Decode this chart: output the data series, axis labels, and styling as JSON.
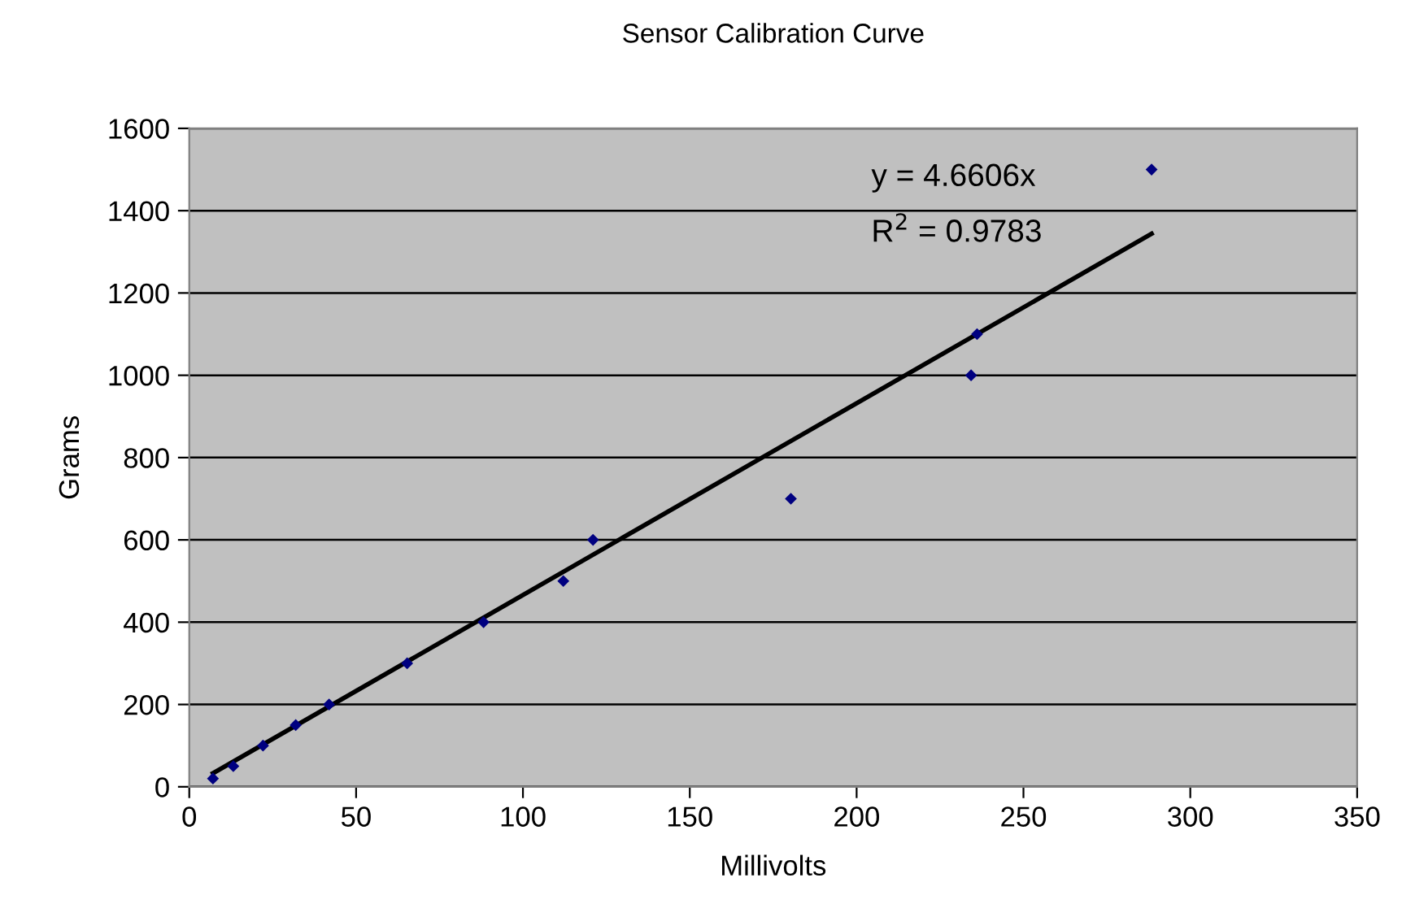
{
  "chart_data": {
    "type": "scatter",
    "title": "Sensor Calibration Curve",
    "xlabel": "Millivolts",
    "ylabel": "Grams",
    "series": [
      {
        "color": "#000080",
        "marker": "diamond",
        "x": [
          7.1,
          13.2,
          22.1,
          31.9,
          41.9,
          65.3,
          88.2,
          112.1,
          121,
          180.3,
          234.3,
          236.1,
          288.4
        ],
        "values": [
          20,
          50,
          100,
          150,
          200,
          300,
          400,
          500,
          600,
          700,
          1000,
          1100,
          1500
        ]
      },
      {
        "type": "line",
        "color": "#000000",
        "marker": "none",
        "line_style": "solid",
        "x": [
          7.1,
          288.4
        ],
        "values": [
          33,
          1344
        ]
      }
    ],
    "annotations": [
      "y = 4.6606x",
      "R$^{2}$ = 0.9783"
    ],
    "xlim": [
      0,
      350
    ],
    "xticks": [
      0,
      50,
      100,
      150,
      200,
      250,
      300,
      350
    ],
    "ylim": [
      0,
      1600
    ],
    "yticks": [
      0,
      200,
      400,
      600,
      800,
      1000,
      1200,
      1400,
      1600
    ],
    "grid": "y",
    "legend": false
  }
}
